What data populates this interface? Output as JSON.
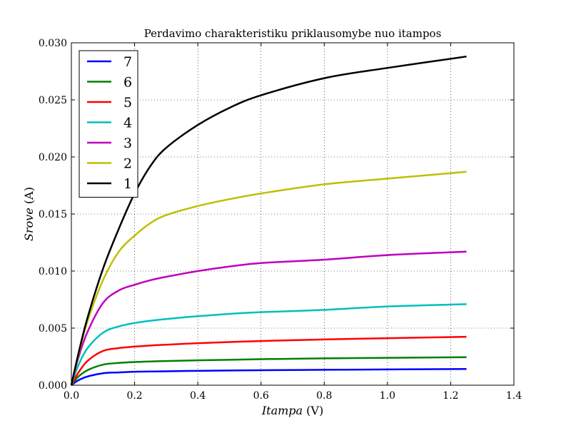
{
  "chart_data": {
    "type": "line",
    "title": "Perdavimo charakteristiku priklausomybe nuo itampos",
    "xlabel": {
      "italic": "Itampa",
      "unit": " (V)"
    },
    "ylabel": {
      "italic": "Srove",
      "unit": " (A)"
    },
    "xlim": [
      0.0,
      1.4
    ],
    "ylim": [
      0.0,
      0.03
    ],
    "xticks": [
      "0.0",
      "0.2",
      "0.4",
      "0.6",
      "0.8",
      "1.0",
      "1.2",
      "1.4"
    ],
    "yticks": [
      "0.000",
      "0.005",
      "0.010",
      "0.015",
      "0.020",
      "0.025",
      "0.030"
    ],
    "grid": true,
    "legend_position": "top-left",
    "x": [
      0.0,
      0.02,
      0.05,
      0.1,
      0.15,
      0.2,
      0.25,
      0.3,
      0.4,
      0.5,
      0.6,
      0.8,
      1.0,
      1.25
    ],
    "series": [
      {
        "name": "7",
        "color": "#0000ff",
        "values": [
          0.0,
          0.0004,
          0.00075,
          0.00105,
          0.00112,
          0.00118,
          0.0012,
          0.00122,
          0.00126,
          0.00129,
          0.00131,
          0.00135,
          0.00138,
          0.00142
        ]
      },
      {
        "name": "6",
        "color": "#008000",
        "values": [
          0.0,
          0.0007,
          0.0013,
          0.0018,
          0.00195,
          0.00203,
          0.00208,
          0.00212,
          0.00218,
          0.00223,
          0.00228,
          0.00235,
          0.0024,
          0.00245
        ]
      },
      {
        "name": "5",
        "color": "#ff0000",
        "values": [
          0.0,
          0.001,
          0.0021,
          0.003,
          0.00325,
          0.00338,
          0.00348,
          0.00355,
          0.00368,
          0.00378,
          0.00387,
          0.00401,
          0.00412,
          0.00424
        ]
      },
      {
        "name": "4",
        "color": "#00bfbf",
        "values": [
          0.0,
          0.0016,
          0.0032,
          0.0046,
          0.00515,
          0.00545,
          0.00565,
          0.0058,
          0.00605,
          0.00625,
          0.0064,
          0.0066,
          0.0069,
          0.0071
        ]
      },
      {
        "name": "3",
        "color": "#bf00bf",
        "values": [
          0.0,
          0.0022,
          0.0046,
          0.0072,
          0.0083,
          0.0088,
          0.0092,
          0.0095,
          0.01,
          0.0104,
          0.0107,
          0.011,
          0.0114,
          0.0117
        ]
      },
      {
        "name": "2",
        "color": "#bfbf00",
        "values": [
          0.0,
          0.0024,
          0.0055,
          0.0092,
          0.0117,
          0.0131,
          0.0142,
          0.0149,
          0.0157,
          0.0163,
          0.0168,
          0.0176,
          0.0181,
          0.0187
        ]
      },
      {
        "name": "1",
        "color": "#000000",
        "values": [
          0.0,
          0.0025,
          0.0058,
          0.0102,
          0.0137,
          0.0168,
          0.0192,
          0.0208,
          0.0228,
          0.0243,
          0.0254,
          0.0269,
          0.0278,
          0.0288
        ]
      }
    ]
  }
}
